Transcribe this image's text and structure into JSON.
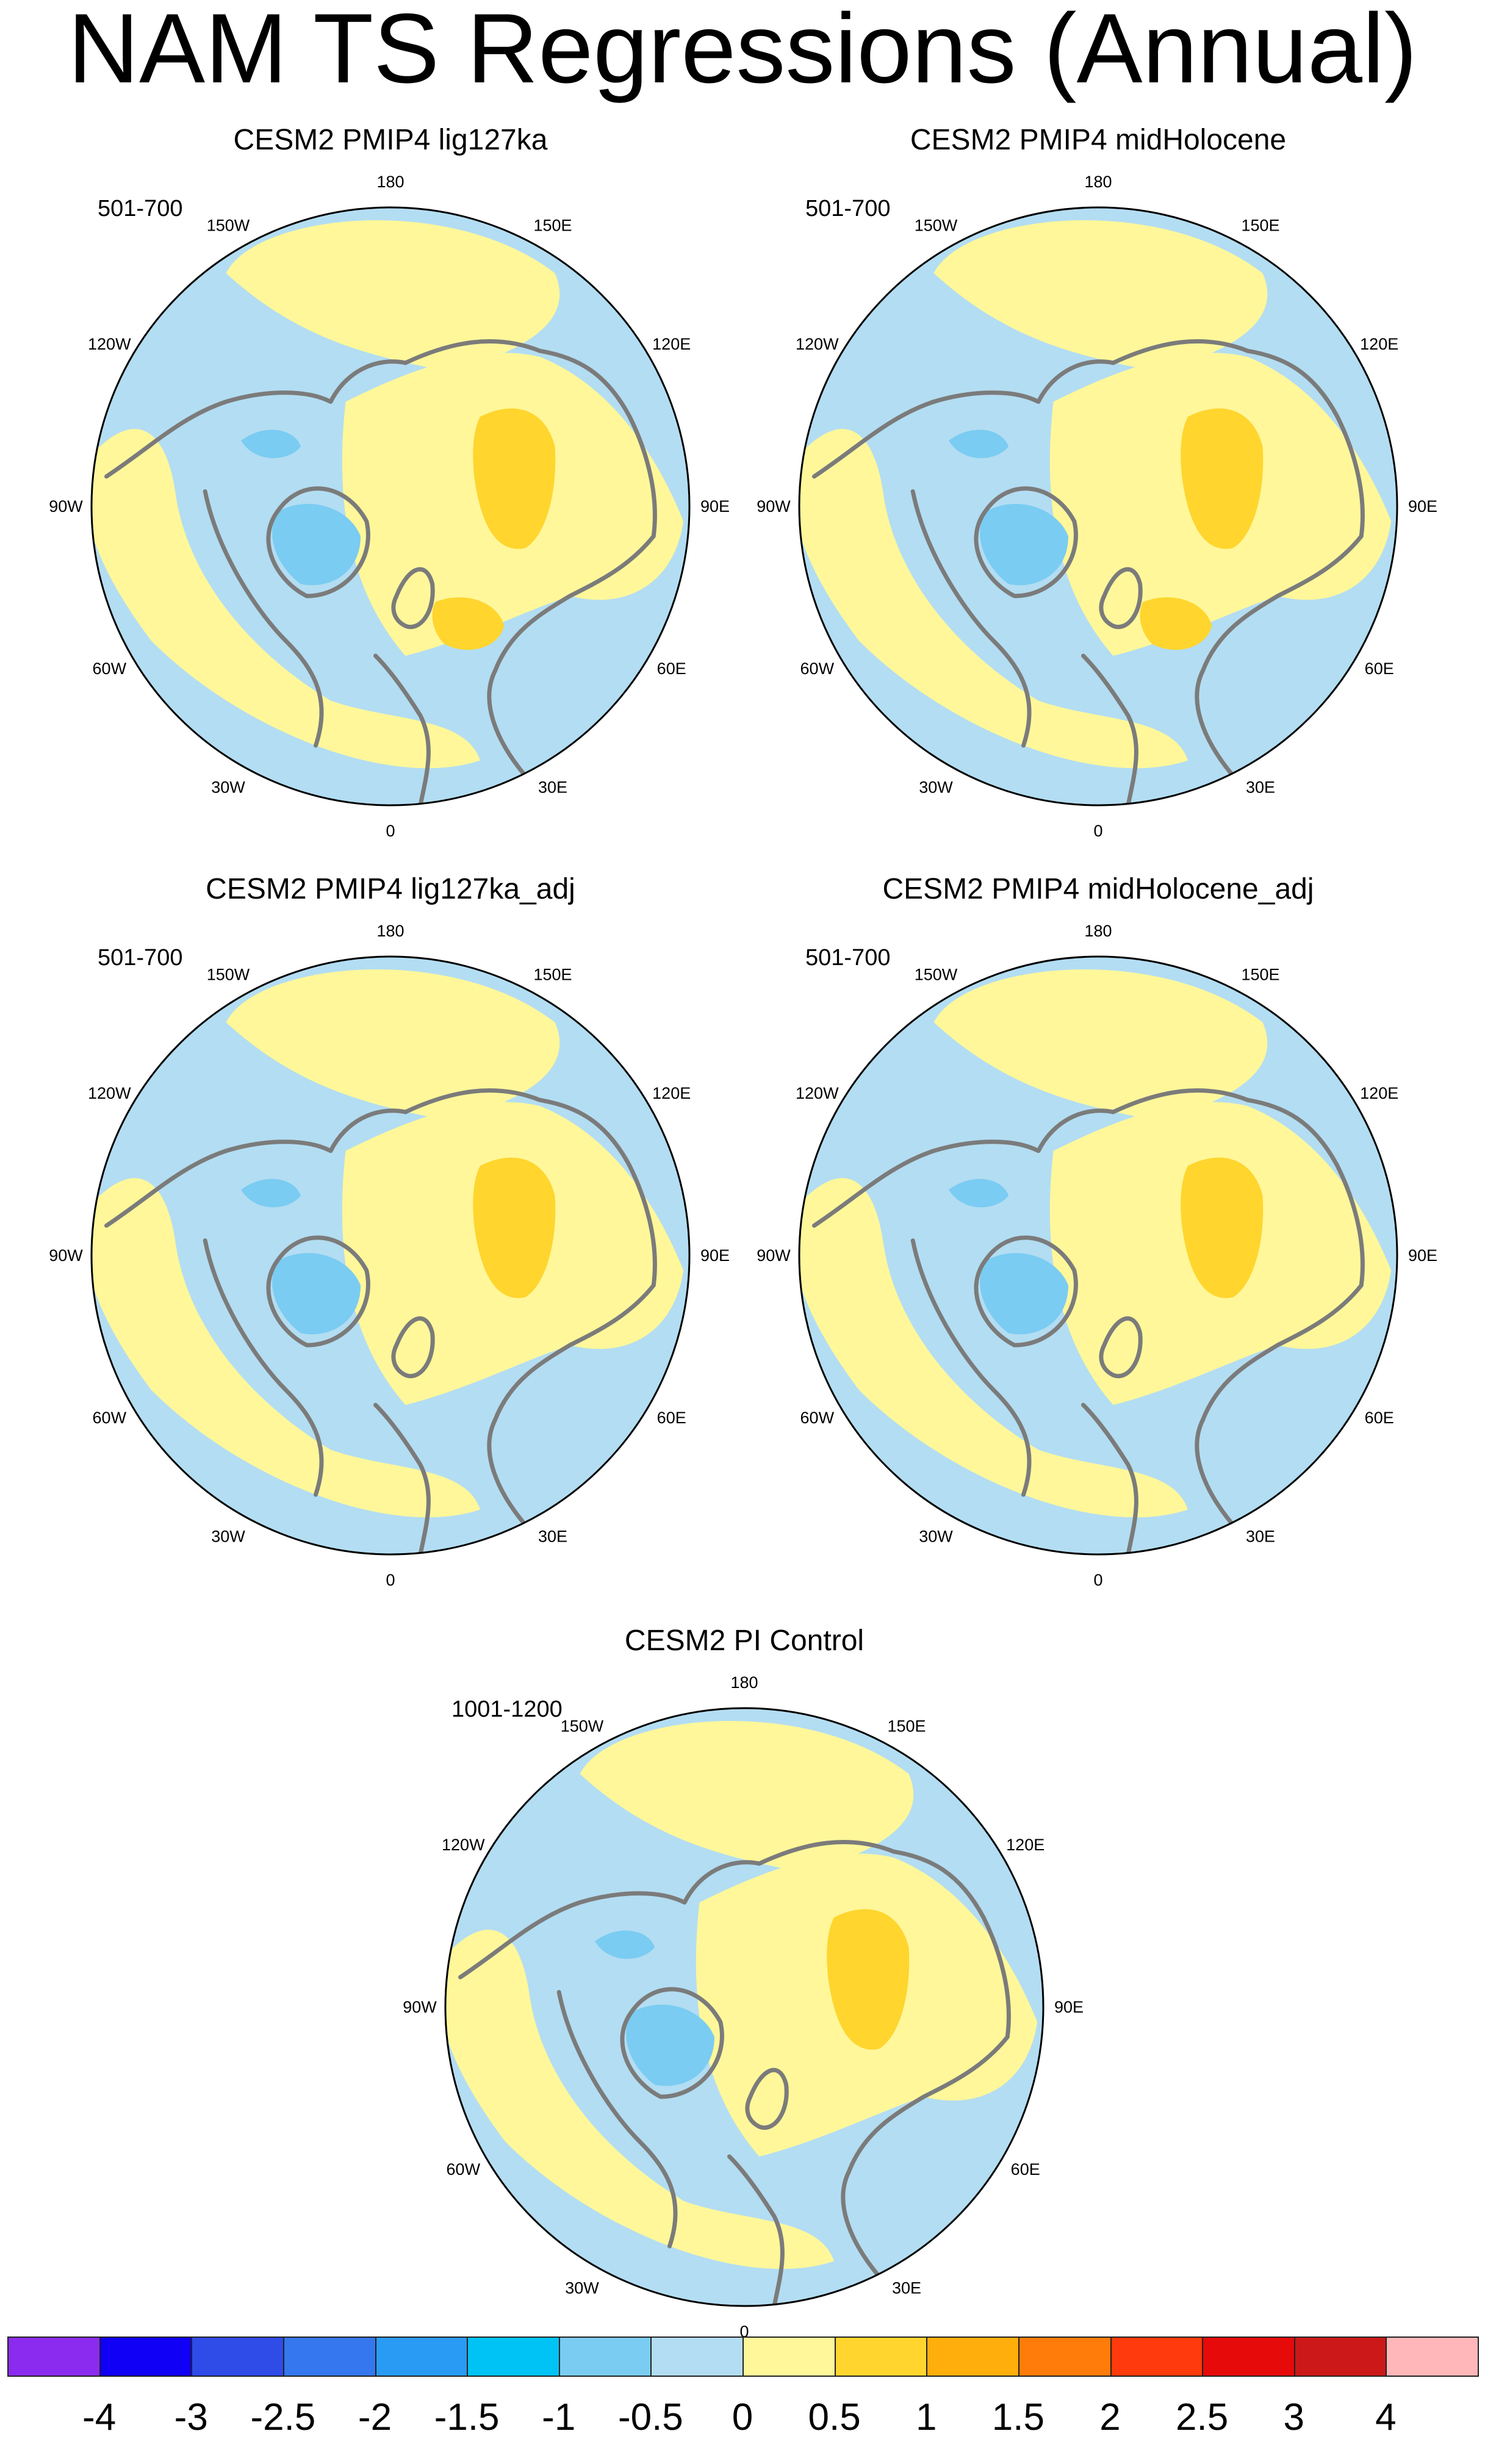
{
  "title": "NAM TS Regressions (Annual)",
  "panels": [
    {
      "title": "CESM2 PMIP4 lig127ka",
      "years": "501-700"
    },
    {
      "title": "CESM2 PMIP4 midHolocene",
      "years": "501-700"
    },
    {
      "title": "CESM2 PMIP4 lig127ka_adj",
      "years": "501-700"
    },
    {
      "title": "CESM2 PMIP4 midHolocene_adj",
      "years": "501-700"
    },
    {
      "title": "CESM2 PI Control",
      "years": "1001-1200"
    }
  ],
  "longitude_labels": [
    "180",
    "150E",
    "120E",
    "90E",
    "60E",
    "30E",
    "0",
    "30W",
    "60W",
    "90W",
    "120W",
    "150W"
  ],
  "colorbar": {
    "labels": [
      "-4",
      "-3",
      "-2.5",
      "-2",
      "-1.5",
      "-1",
      "-0.5",
      "0",
      "0.5",
      "1",
      "1.5",
      "2",
      "2.5",
      "3",
      "4"
    ],
    "colors": [
      "#8C2BF0",
      "#1000F5",
      "#2F4BE8",
      "#3577EE",
      "#2A9BF4",
      "#00C3F5",
      "#7ACCF2",
      "#B3DDF2",
      "#FFF79A",
      "#FFD52E",
      "#FFAE0C",
      "#FF7C0A",
      "#FF3A0C",
      "#E60A0A",
      "#CC1818",
      "#FFB7B9"
    ]
  },
  "colors": {
    "ocean_base": "#B3DDF2",
    "positive_weak": "#FFF79A",
    "positive_moderate": "#FFD52E",
    "negative_moderate": "#7ACCF2",
    "coastline": "#7B7B7B"
  }
}
